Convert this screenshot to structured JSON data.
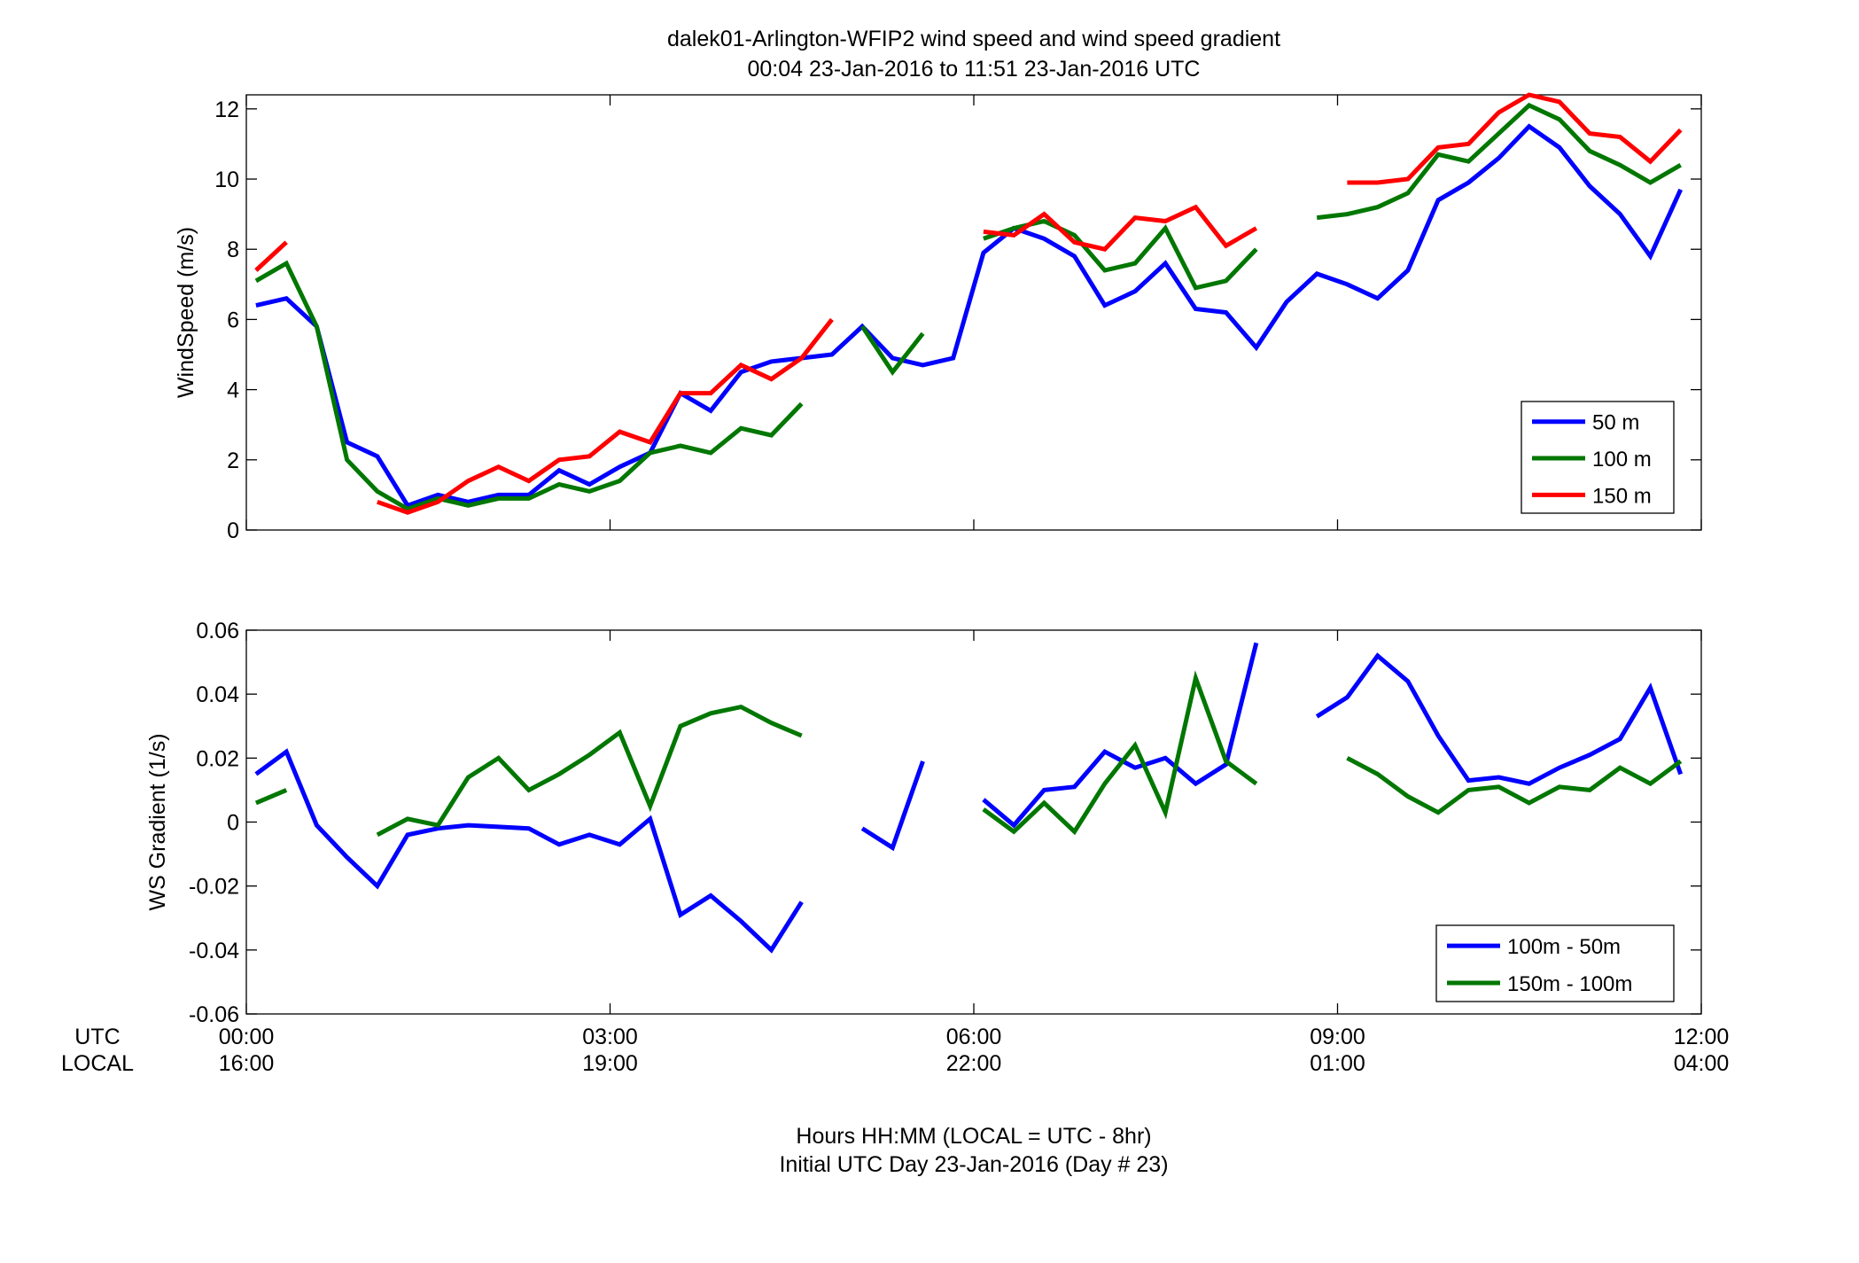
{
  "title": {
    "line1": "dalek01-Arlington-WFIP2  wind speed and wind speed gradient",
    "line2": "00:04 23-Jan-2016 to 11:51 23-Jan-2016  UTC"
  },
  "footer": {
    "line1": "Hours HH:MM  (LOCAL = UTC - 8hr)",
    "line2": "Initial UTC Day 23-Jan-2016 (Day # 23)"
  },
  "xaxis": {
    "utc_label": "UTC",
    "local_label": "LOCAL",
    "ticks_hours": [
      0,
      3,
      6,
      9,
      12
    ],
    "utc_ticks": [
      "00:00",
      "03:00",
      "06:00",
      "09:00",
      "12:00"
    ],
    "local_ticks": [
      "16:00",
      "19:00",
      "22:00",
      "01:00",
      "04:00"
    ],
    "xlim_hours": [
      0,
      12
    ]
  },
  "colors": {
    "blue": "#0000ff",
    "green": "#007700",
    "red": "#ff0000"
  },
  "chart_data": [
    {
      "type": "line",
      "ylabel": "WindSpeed (m/s)",
      "ylim": [
        0,
        12.4
      ],
      "yticks": [
        0,
        2,
        4,
        6,
        8,
        10,
        12
      ],
      "ytick_labels": [
        "0",
        "2",
        "4",
        "6",
        "8",
        "10",
        "12"
      ],
      "legend_position": "bottom-right",
      "grid": false,
      "series": [
        {
          "name": "50 m",
          "color": "#0000ff",
          "segments": [
            [
              [
                0.08,
                6.4
              ],
              [
                0.33,
                6.6
              ],
              [
                0.58,
                5.8
              ],
              [
                0.83,
                2.5
              ],
              [
                1.08,
                2.1
              ],
              [
                1.33,
                0.7
              ],
              [
                1.58,
                1.0
              ],
              [
                1.83,
                0.8
              ],
              [
                2.08,
                1.0
              ],
              [
                2.33,
                1.0
              ],
              [
                2.58,
                1.7
              ],
              [
                2.83,
                1.3
              ],
              [
                3.08,
                1.8
              ],
              [
                3.33,
                2.2
              ],
              [
                3.58,
                3.9
              ],
              [
                3.83,
                3.4
              ],
              [
                4.08,
                4.5
              ],
              [
                4.33,
                4.8
              ],
              [
                4.58,
                4.9
              ],
              [
                4.83,
                5.0
              ],
              [
                5.08,
                5.8
              ],
              [
                5.33,
                4.9
              ],
              [
                5.58,
                4.7
              ],
              [
                5.83,
                4.9
              ],
              [
                6.08,
                7.9
              ],
              [
                6.33,
                8.6
              ],
              [
                6.58,
                8.3
              ],
              [
                6.83,
                7.8
              ],
              [
                7.08,
                6.4
              ],
              [
                7.33,
                6.8
              ],
              [
                7.58,
                7.6
              ],
              [
                7.83,
                6.3
              ],
              [
                8.08,
                6.2
              ],
              [
                8.33,
                5.2
              ],
              [
                8.58,
                6.5
              ],
              [
                8.83,
                7.3
              ],
              [
                9.08,
                7.0
              ],
              [
                9.33,
                6.6
              ],
              [
                9.58,
                7.4
              ],
              [
                9.83,
                9.4
              ],
              [
                10.08,
                9.9
              ],
              [
                10.33,
                10.6
              ],
              [
                10.58,
                11.5
              ],
              [
                10.83,
                10.9
              ],
              [
                11.08,
                9.8
              ],
              [
                11.33,
                9.0
              ],
              [
                11.58,
                7.8
              ],
              [
                11.83,
                9.7
              ]
            ]
          ]
        },
        {
          "name": "100 m",
          "color": "#007700",
          "segments": [
            [
              [
                0.08,
                7.1
              ],
              [
                0.33,
                7.6
              ],
              [
                0.58,
                5.8
              ],
              [
                0.83,
                2.0
              ],
              [
                1.08,
                1.1
              ],
              [
                1.33,
                0.6
              ],
              [
                1.58,
                0.9
              ],
              [
                1.83,
                0.7
              ],
              [
                2.08,
                0.9
              ],
              [
                2.33,
                0.9
              ],
              [
                2.58,
                1.3
              ],
              [
                2.83,
                1.1
              ],
              [
                3.08,
                1.4
              ],
              [
                3.33,
                2.2
              ],
              [
                3.58,
                2.4
              ],
              [
                3.83,
                2.2
              ],
              [
                4.08,
                2.9
              ],
              [
                4.33,
                2.7
              ],
              [
                4.58,
                3.6
              ]
            ],
            [
              [
                5.08,
                5.8
              ],
              [
                5.33,
                4.5
              ],
              [
                5.58,
                5.6
              ]
            ],
            [
              [
                6.08,
                8.3
              ],
              [
                6.33,
                8.6
              ],
              [
                6.58,
                8.8
              ],
              [
                6.83,
                8.4
              ],
              [
                7.08,
                7.4
              ],
              [
                7.33,
                7.6
              ],
              [
                7.58,
                8.6
              ],
              [
                7.83,
                6.9
              ],
              [
                8.08,
                7.1
              ],
              [
                8.33,
                8.0
              ]
            ],
            [
              [
                8.83,
                8.9
              ],
              [
                9.08,
                9.0
              ],
              [
                9.33,
                9.2
              ],
              [
                9.58,
                9.6
              ],
              [
                9.83,
                10.7
              ],
              [
                10.08,
                10.5
              ],
              [
                10.33,
                11.3
              ],
              [
                10.58,
                12.1
              ],
              [
                10.83,
                11.7
              ],
              [
                11.08,
                10.8
              ],
              [
                11.33,
                10.4
              ],
              [
                11.58,
                9.9
              ],
              [
                11.83,
                10.4
              ]
            ]
          ]
        },
        {
          "name": "150 m",
          "color": "#ff0000",
          "segments": [
            [
              [
                0.08,
                7.4
              ],
              [
                0.33,
                8.2
              ]
            ],
            [
              [
                1.08,
                0.8
              ],
              [
                1.33,
                0.5
              ],
              [
                1.58,
                0.8
              ],
              [
                1.83,
                1.4
              ],
              [
                2.08,
                1.8
              ],
              [
                2.33,
                1.4
              ],
              [
                2.58,
                2.0
              ],
              [
                2.83,
                2.1
              ],
              [
                3.08,
                2.8
              ],
              [
                3.33,
                2.5
              ],
              [
                3.58,
                3.9
              ],
              [
                3.83,
                3.9
              ],
              [
                4.08,
                4.7
              ],
              [
                4.33,
                4.3
              ],
              [
                4.58,
                4.9
              ],
              [
                4.83,
                6.0
              ]
            ],
            [
              [
                6.08,
                8.5
              ],
              [
                6.33,
                8.4
              ],
              [
                6.58,
                9.0
              ],
              [
                6.83,
                8.2
              ],
              [
                7.08,
                8.0
              ],
              [
                7.33,
                8.9
              ],
              [
                7.58,
                8.8
              ],
              [
                7.83,
                9.2
              ],
              [
                8.08,
                8.1
              ],
              [
                8.33,
                8.6
              ]
            ],
            [
              [
                9.08,
                9.9
              ],
              [
                9.33,
                9.9
              ],
              [
                9.58,
                10.0
              ],
              [
                9.83,
                10.9
              ],
              [
                10.08,
                11.0
              ],
              [
                10.33,
                11.9
              ],
              [
                10.58,
                12.4
              ],
              [
                10.83,
                12.2
              ],
              [
                11.08,
                11.3
              ],
              [
                11.33,
                11.2
              ],
              [
                11.58,
                10.5
              ],
              [
                11.83,
                11.4
              ]
            ]
          ]
        }
      ]
    },
    {
      "type": "line",
      "ylabel": "WS Gradient (1/s)",
      "ylim": [
        -0.06,
        0.06
      ],
      "yticks": [
        -0.06,
        -0.04,
        -0.02,
        0,
        0.02,
        0.04,
        0.06
      ],
      "ytick_labels": [
        "-0.06",
        "-0.04",
        "-0.02",
        "0",
        "0.02",
        "0.04",
        "0.06"
      ],
      "legend_position": "bottom-right",
      "grid": false,
      "series": [
        {
          "name": "100m - 50m",
          "color": "#0000ff",
          "segments": [
            [
              [
                0.08,
                0.015
              ],
              [
                0.33,
                0.022
              ],
              [
                0.58,
                -0.001
              ],
              [
                0.83,
                -0.011
              ],
              [
                1.08,
                -0.02
              ],
              [
                1.33,
                -0.004
              ],
              [
                1.58,
                -0.002
              ],
              [
                1.83,
                -0.001
              ],
              [
                2.08,
                -0.0015
              ],
              [
                2.33,
                -0.002
              ],
              [
                2.58,
                -0.007
              ],
              [
                2.83,
                -0.004
              ],
              [
                3.08,
                -0.007
              ],
              [
                3.33,
                0.001
              ],
              [
                3.58,
                -0.029
              ],
              [
                3.83,
                -0.023
              ],
              [
                4.08,
                -0.031
              ],
              [
                4.33,
                -0.04
              ],
              [
                4.58,
                -0.025
              ]
            ],
            [
              [
                5.08,
                -0.002
              ],
              [
                5.33,
                -0.008
              ],
              [
                5.58,
                0.019
              ]
            ],
            [
              [
                6.08,
                0.007
              ],
              [
                6.33,
                -0.001
              ],
              [
                6.58,
                0.01
              ],
              [
                6.83,
                0.011
              ],
              [
                7.08,
                0.022
              ],
              [
                7.33,
                0.017
              ],
              [
                7.58,
                0.02
              ],
              [
                7.83,
                0.012
              ],
              [
                8.08,
                0.018
              ],
              [
                8.33,
                0.056
              ]
            ],
            [
              [
                8.83,
                0.033
              ],
              [
                9.08,
                0.039
              ],
              [
                9.33,
                0.052
              ],
              [
                9.58,
                0.044
              ],
              [
                9.83,
                0.027
              ],
              [
                10.08,
                0.013
              ],
              [
                10.33,
                0.014
              ],
              [
                10.58,
                0.012
              ],
              [
                10.83,
                0.017
              ],
              [
                11.08,
                0.021
              ],
              [
                11.33,
                0.026
              ],
              [
                11.58,
                0.042
              ],
              [
                11.83,
                0.015
              ]
            ]
          ]
        },
        {
          "name": "150m - 100m",
          "color": "#007700",
          "segments": [
            [
              [
                0.08,
                0.006
              ],
              [
                0.33,
                0.01
              ]
            ],
            [
              [
                1.08,
                -0.004
              ],
              [
                1.33,
                0.001
              ],
              [
                1.58,
                -0.001
              ],
              [
                1.83,
                0.014
              ],
              [
                2.08,
                0.02
              ],
              [
                2.33,
                0.01
              ],
              [
                2.58,
                0.015
              ],
              [
                2.83,
                0.021
              ],
              [
                3.08,
                0.028
              ],
              [
                3.33,
                0.005
              ],
              [
                3.58,
                0.03
              ],
              [
                3.83,
                0.034
              ],
              [
                4.08,
                0.036
              ],
              [
                4.33,
                0.031
              ],
              [
                4.58,
                0.027
              ]
            ],
            [
              [
                6.08,
                0.004
              ],
              [
                6.33,
                -0.003
              ],
              [
                6.58,
                0.006
              ],
              [
                6.83,
                -0.003
              ],
              [
                7.08,
                0.012
              ],
              [
                7.33,
                0.024
              ],
              [
                7.58,
                0.003
              ],
              [
                7.83,
                0.045
              ],
              [
                8.08,
                0.019
              ],
              [
                8.33,
                0.012
              ]
            ],
            [
              [
                9.08,
                0.02
              ],
              [
                9.33,
                0.015
              ],
              [
                9.58,
                0.008
              ],
              [
                9.83,
                0.003
              ],
              [
                10.08,
                0.01
              ],
              [
                10.33,
                0.011
              ],
              [
                10.58,
                0.006
              ],
              [
                10.83,
                0.011
              ],
              [
                11.08,
                0.01
              ],
              [
                11.33,
                0.017
              ],
              [
                11.58,
                0.012
              ],
              [
                11.83,
                0.019
              ]
            ]
          ]
        }
      ]
    }
  ]
}
